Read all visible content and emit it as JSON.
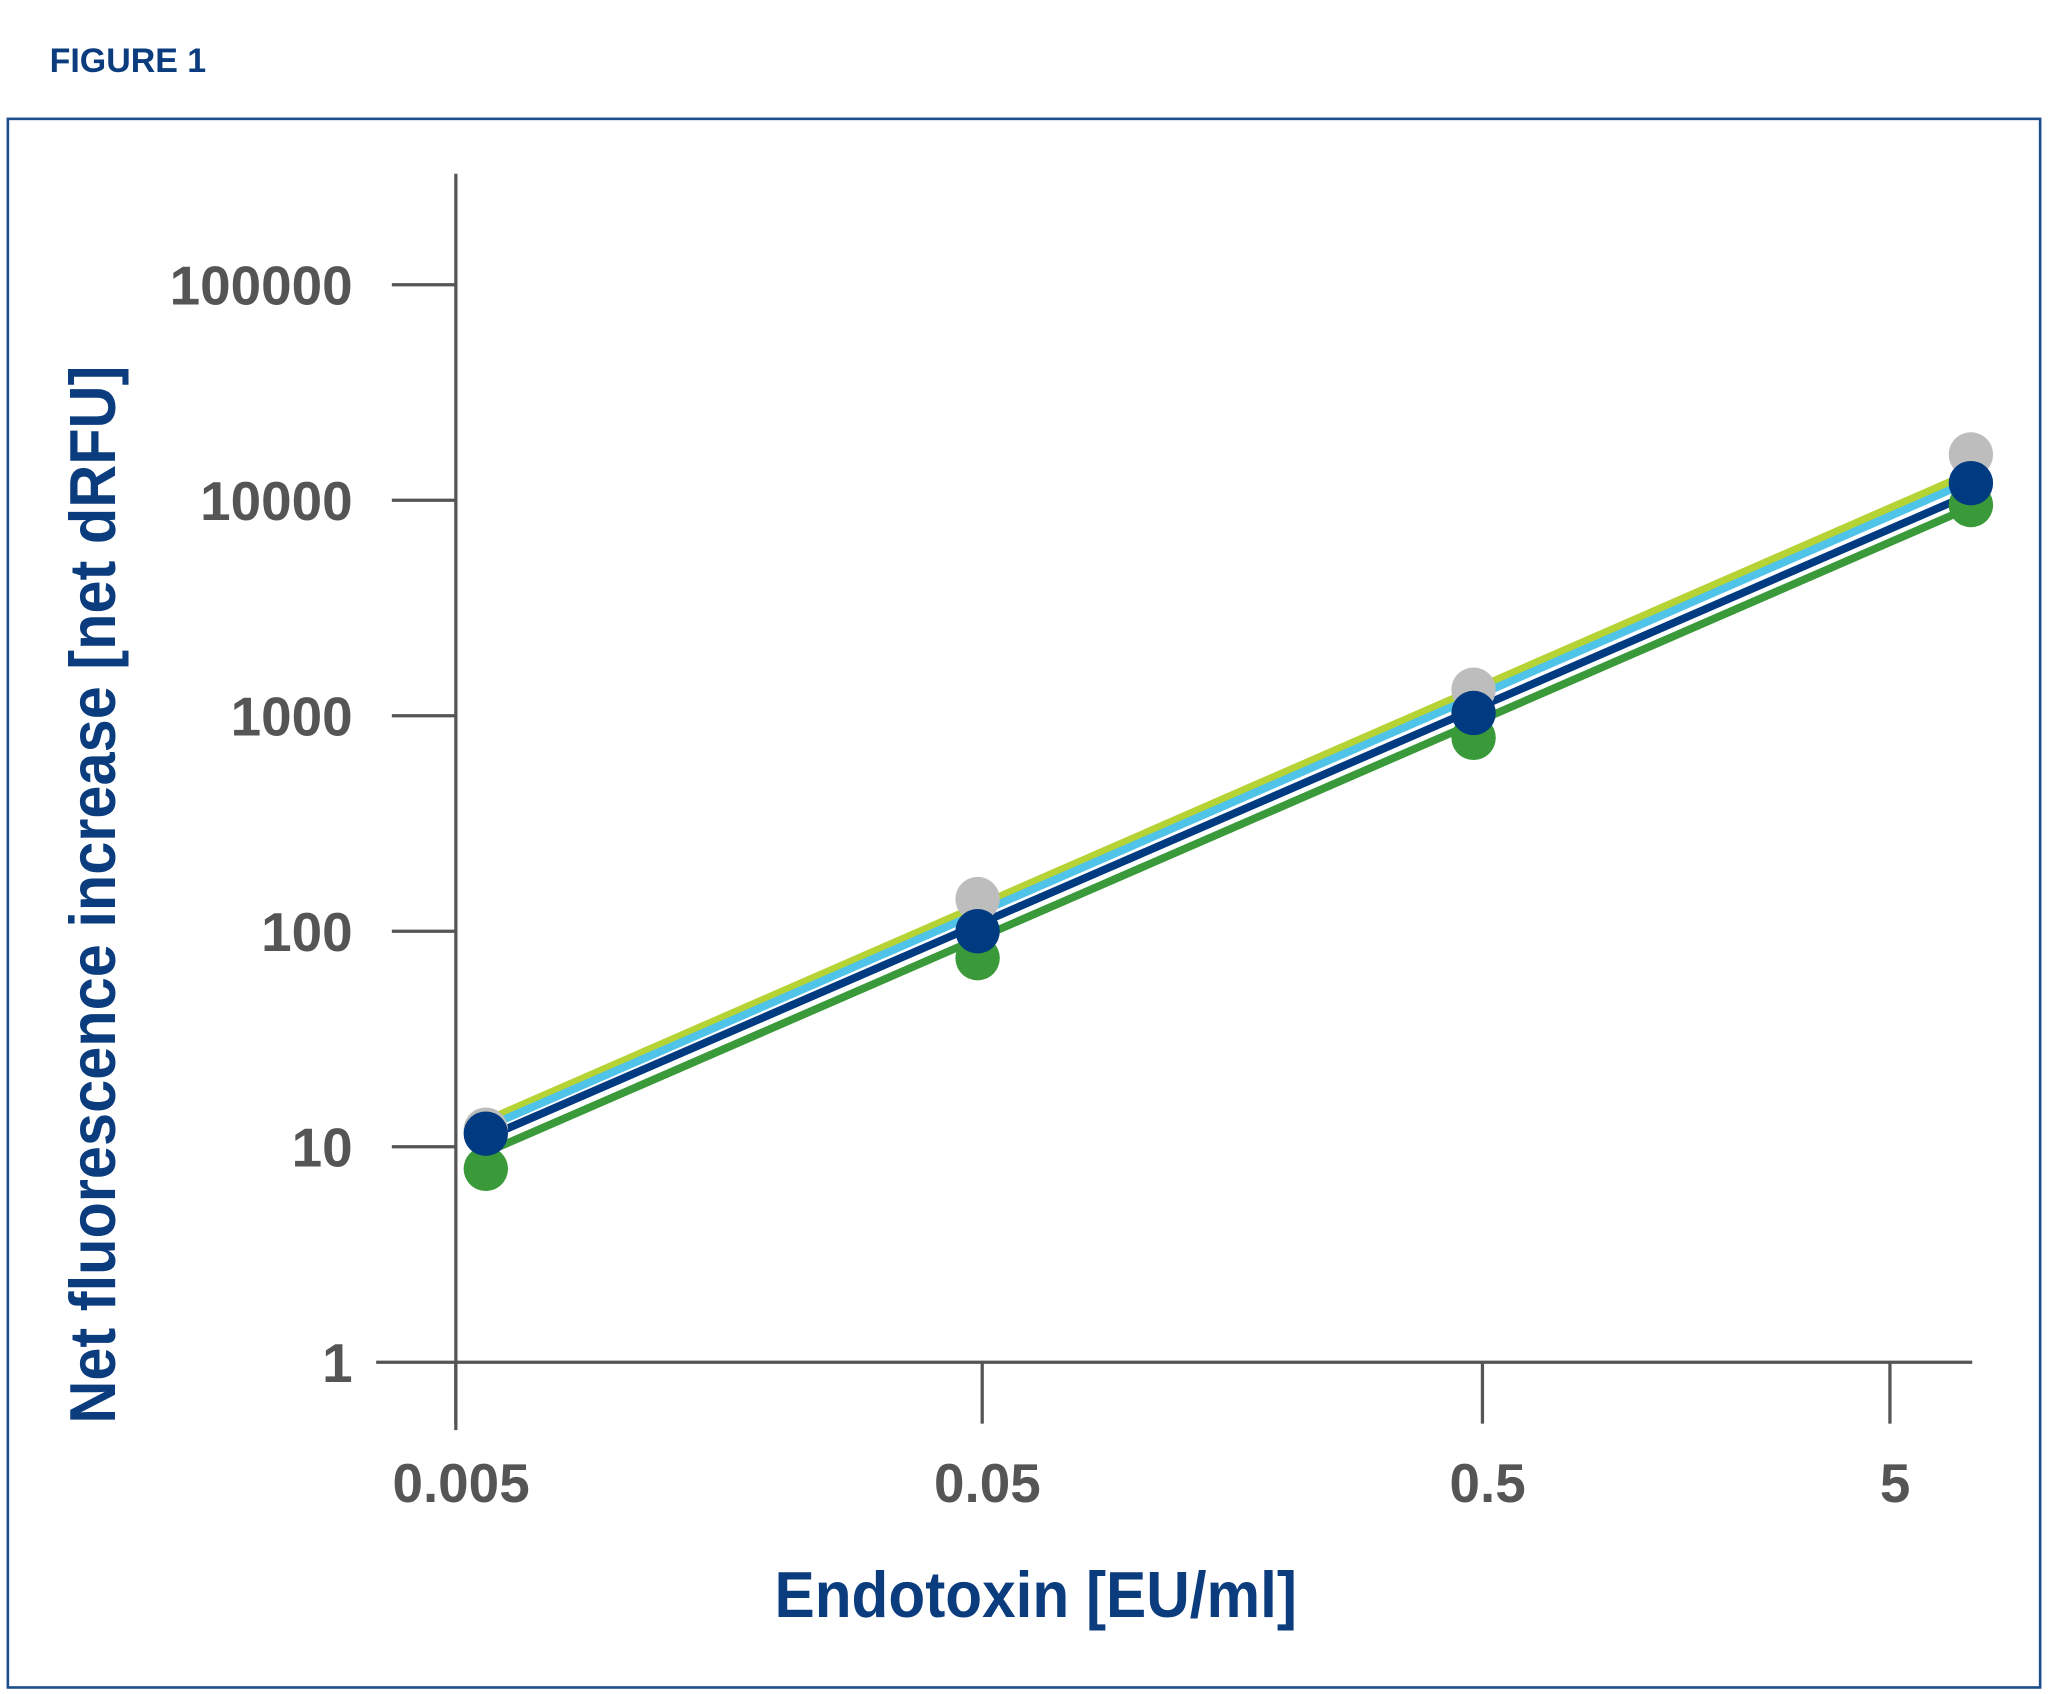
{
  "figure_label": "FIGURE 1",
  "colors": {
    "title": "#0b3c7d",
    "frame": "#1d4f8c",
    "axis": "#555555",
    "tick_text": "#555555"
  },
  "chart_data": {
    "type": "line",
    "title": "",
    "xlabel": "Endotoxin [EU/ml]",
    "ylabel": "Net fluorescence increase [net dRFU]",
    "x_scale": "log",
    "y_scale": "log",
    "ylim": [
      1,
      300000
    ],
    "x_ticks": [
      {
        "value": 0.005,
        "label": "0.005"
      },
      {
        "value": 0.05,
        "label": "0.05"
      },
      {
        "value": 0.5,
        "label": "0.5"
      },
      {
        "value": 5,
        "label": "5"
      }
    ],
    "y_ticks": [
      {
        "value": 1,
        "label": "1"
      },
      {
        "value": 10,
        "label": "10"
      },
      {
        "value": 100,
        "label": "100"
      },
      {
        "value": 1000,
        "label": "1000"
      },
      {
        "value": 10000,
        "label": "10000"
      },
      {
        "value": 100000,
        "label": "100000"
      }
    ],
    "grid": false,
    "legend": "none",
    "fit_lines": [
      {
        "name": "fit-lime",
        "color": "#b5d334",
        "x": [
          0.0057,
          7.9
        ],
        "y": [
          13.2,
          13400
        ]
      },
      {
        "name": "fit-lightblue",
        "color": "#4fc3e8",
        "x": [
          0.0057,
          7.9
        ],
        "y": [
          12.3,
          12300
        ]
      },
      {
        "name": "fit-navy",
        "color": "#003a80",
        "x": [
          0.0057,
          7.9
        ],
        "y": [
          11.0,
          10700
        ]
      },
      {
        "name": "fit-green",
        "color": "#3a9a3a",
        "x": [
          0.0057,
          7.9
        ],
        "y": [
          9.4,
          9300
        ]
      }
    ],
    "series": [
      {
        "name": "gray",
        "color": "#bdbdbd",
        "x": [
          0.0057,
          0.049,
          0.48,
          7.9
        ],
        "y": [
          12,
          141,
          1320,
          16300
        ]
      },
      {
        "name": "green",
        "color": "#3a9a3a",
        "x": [
          0.0057,
          0.049,
          0.48,
          7.9
        ],
        "y": [
          7.9,
          75,
          790,
          9500
        ]
      },
      {
        "name": "navy",
        "color": "#003a80",
        "x": [
          0.0057,
          0.049,
          0.48,
          7.9
        ],
        "y": [
          11.5,
          100,
          1030,
          12000
        ]
      }
    ]
  }
}
